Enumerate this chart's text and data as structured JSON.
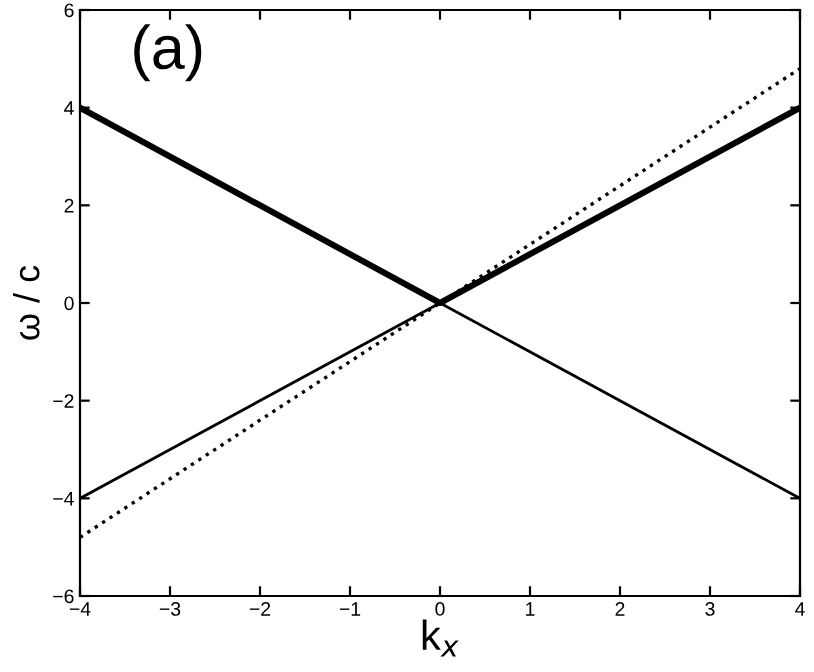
{
  "chart_data": {
    "type": "line",
    "xlabel": "k$_{x}$",
    "ylabel": "ω / c",
    "annotations": [
      "(a)"
    ],
    "series": [
      {
        "color": "#000000",
        "x": [
          -4,
          0,
          4
        ],
        "values": [
          4,
          0,
          4
        ],
        "line_style": "solid"
      },
      {
        "color": "#000000",
        "x": [
          -4,
          0,
          4
        ],
        "values": [
          -4,
          0,
          -4
        ],
        "line_style": "solid"
      },
      {
        "color": "#000000",
        "x": [
          -4,
          4
        ],
        "values": [
          -4.8,
          4.8
        ],
        "line_style": "dotted"
      }
    ],
    "xlim": [
      -4,
      4
    ],
    "ylim": [
      -6,
      6
    ],
    "xticks": [
      {
        "value": -4,
        "label": "−4"
      },
      {
        "value": -3,
        "label": "−3"
      },
      {
        "value": -2,
        "label": "−2"
      },
      {
        "value": -1,
        "label": "−1"
      },
      0,
      1,
      2,
      3,
      4
    ],
    "yticks": [
      {
        "value": -6,
        "label": "−6"
      },
      {
        "value": -4,
        "label": "−4"
      },
      {
        "value": -2,
        "label": "−2"
      },
      0,
      2,
      4,
      6
    ],
    "grid": false,
    "legend": false,
    "marker": "none"
  }
}
